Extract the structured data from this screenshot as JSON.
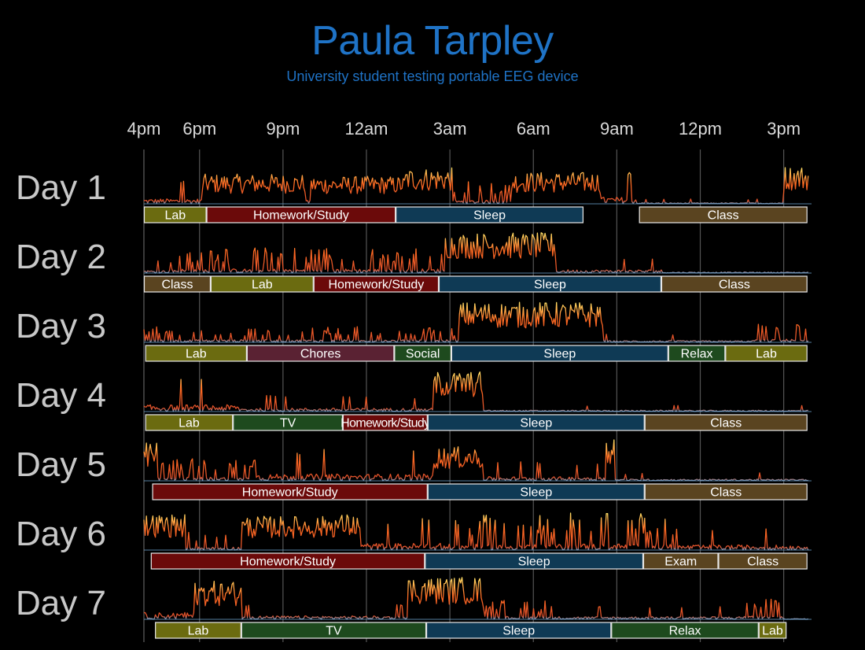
{
  "header": {
    "title": "Paula Tarpley",
    "subtitle": "University student testing portable EEG device"
  },
  "colors": {
    "background": "#000000",
    "title": "#1f73c6",
    "gridline": "#555555",
    "signal_low": "#6a9ec9",
    "signal_mid": "#ff4a1c",
    "signal_high": "#ffe066",
    "activities": {
      "Lab": "#6b6b10",
      "Homework/Study": "#6b0a0a",
      "Sleep": "#0f3a55",
      "Class": "#5a4420",
      "Chores": "#5a2233",
      "Social": "#1e4a1e",
      "Relax": "#1e4a1e",
      "TV": "#1e4a1e",
      "Exam": "#5a4420"
    }
  },
  "chart_data": {
    "type": "timeline",
    "title": "Paula Tarpley",
    "subtitle": "University student testing portable EEG device",
    "x_unit": "hours since 4pm",
    "x_range": [
      0,
      24
    ],
    "x_ticks": [
      {
        "hour": 0,
        "label": "4pm"
      },
      {
        "hour": 2,
        "label": "6pm"
      },
      {
        "hour": 5,
        "label": "9pm"
      },
      {
        "hour": 8,
        "label": "12am"
      },
      {
        "hour": 11,
        "label": "3am"
      },
      {
        "hour": 14,
        "label": "6am"
      },
      {
        "hour": 17,
        "label": "9am"
      },
      {
        "hour": 20,
        "label": "12pm"
      },
      {
        "hour": 23,
        "label": "3pm"
      }
    ],
    "days": [
      {
        "label": "Day 1",
        "activities": [
          {
            "label": "Lab",
            "start": 0.0,
            "end": 2.25
          },
          {
            "label": "Homework/Study",
            "start": 2.25,
            "end": 9.05
          },
          {
            "label": "Sleep",
            "start": 9.05,
            "end": 15.8
          },
          {
            "label": "Class",
            "start": 17.8,
            "end": 23.85
          }
        ],
        "signal": [
          {
            "start": 0.0,
            "end": 2.1,
            "level": 0.15
          },
          {
            "start": 2.1,
            "end": 5.8,
            "level": 0.7
          },
          {
            "start": 5.8,
            "end": 6.0,
            "level": 0.1
          },
          {
            "start": 6.0,
            "end": 9.4,
            "level": 0.65
          },
          {
            "start": 9.4,
            "end": 11.1,
            "level": 0.85
          },
          {
            "start": 11.1,
            "end": 13.2,
            "level": 0.35
          },
          {
            "start": 13.2,
            "end": 16.4,
            "level": 0.75
          },
          {
            "start": 16.4,
            "end": 17.7,
            "level": 0.2
          },
          {
            "start": 17.7,
            "end": 23.0,
            "level": 0.03
          },
          {
            "start": 23.0,
            "end": 23.9,
            "level": 0.9
          }
        ]
      },
      {
        "label": "Day 2",
        "activities": [
          {
            "label": "Class",
            "start": 0.0,
            "end": 2.4
          },
          {
            "label": "Lab",
            "start": 2.4,
            "end": 6.1
          },
          {
            "label": "Homework/Study",
            "start": 6.1,
            "end": 10.6
          },
          {
            "label": "Sleep",
            "start": 10.6,
            "end": 18.6
          },
          {
            "label": "Class",
            "start": 18.6,
            "end": 23.85
          }
        ],
        "signal": [
          {
            "start": 0.0,
            "end": 1.0,
            "level": 0.08
          },
          {
            "start": 1.0,
            "end": 10.8,
            "level": 0.4
          },
          {
            "start": 10.8,
            "end": 14.8,
            "level": 0.95
          },
          {
            "start": 14.8,
            "end": 18.6,
            "level": 0.1
          },
          {
            "start": 18.6,
            "end": 23.9,
            "level": 0.03
          }
        ]
      },
      {
        "label": "Day 3",
        "activities": [
          {
            "label": "Lab",
            "start": 0.05,
            "end": 3.7
          },
          {
            "label": "Chores",
            "start": 3.7,
            "end": 9.0
          },
          {
            "label": "Social",
            "start": 9.0,
            "end": 11.05
          },
          {
            "label": "Sleep",
            "start": 11.05,
            "end": 18.85
          },
          {
            "label": "Relax",
            "start": 18.85,
            "end": 20.9
          },
          {
            "label": "Lab",
            "start": 20.9,
            "end": 23.85
          }
        ],
        "signal": [
          {
            "start": 0.0,
            "end": 11.3,
            "level": 0.25
          },
          {
            "start": 11.3,
            "end": 16.5,
            "level": 0.95
          },
          {
            "start": 16.5,
            "end": 21.8,
            "level": 0.05
          },
          {
            "start": 21.8,
            "end": 23.9,
            "level": 0.3
          }
        ]
      },
      {
        "label": "Day 4",
        "activities": [
          {
            "label": "Lab",
            "start": 0.05,
            "end": 3.2
          },
          {
            "label": "TV",
            "start": 3.2,
            "end": 7.15
          },
          {
            "label": "Homework/Study",
            "start": 7.15,
            "end": 10.2
          },
          {
            "label": "Sleep",
            "start": 10.2,
            "end": 18.0
          },
          {
            "label": "Class",
            "start": 18.0,
            "end": 23.85
          }
        ],
        "signal": [
          {
            "start": 0.0,
            "end": 3.4,
            "level": 0.2
          },
          {
            "start": 3.4,
            "end": 10.4,
            "level": 0.1
          },
          {
            "start": 10.4,
            "end": 12.2,
            "level": 0.95
          },
          {
            "start": 12.2,
            "end": 23.9,
            "level": 0.04
          }
        ]
      },
      {
        "label": "Day 5",
        "activities": [
          {
            "label": "Homework/Study",
            "start": 0.3,
            "end": 10.2
          },
          {
            "label": "Sleep",
            "start": 10.2,
            "end": 18.0
          },
          {
            "label": "Class",
            "start": 18.0,
            "end": 23.85
          }
        ],
        "signal": [
          {
            "start": 0.0,
            "end": 0.5,
            "level": 0.9
          },
          {
            "start": 0.5,
            "end": 4.0,
            "level": 0.35
          },
          {
            "start": 4.0,
            "end": 10.4,
            "level": 0.2
          },
          {
            "start": 10.4,
            "end": 12.2,
            "level": 0.8
          },
          {
            "start": 12.2,
            "end": 16.6,
            "level": 0.12
          },
          {
            "start": 16.6,
            "end": 16.9,
            "level": 1.0
          },
          {
            "start": 16.9,
            "end": 23.9,
            "level": 0.05
          }
        ]
      },
      {
        "label": "Day 6",
        "activities": [
          {
            "label": "Homework/Study",
            "start": 0.25,
            "end": 10.1
          },
          {
            "label": "Sleep",
            "start": 10.1,
            "end": 17.95
          },
          {
            "label": "Exam",
            "start": 17.95,
            "end": 20.65
          },
          {
            "label": "Class",
            "start": 20.65,
            "end": 23.85
          }
        ],
        "signal": [
          {
            "start": 0.0,
            "end": 1.5,
            "level": 0.85
          },
          {
            "start": 1.5,
            "end": 3.5,
            "level": 0.3
          },
          {
            "start": 3.5,
            "end": 6.5,
            "level": 0.8
          },
          {
            "start": 6.5,
            "end": 7.8,
            "level": 0.85
          },
          {
            "start": 7.8,
            "end": 10.8,
            "level": 0.2
          },
          {
            "start": 10.8,
            "end": 15.3,
            "level": 0.55
          },
          {
            "start": 15.3,
            "end": 19.2,
            "level": 0.6
          },
          {
            "start": 19.2,
            "end": 23.9,
            "level": 0.15
          }
        ]
      },
      {
        "label": "Day 7",
        "activities": [
          {
            "label": "Lab",
            "start": 0.4,
            "end": 3.5
          },
          {
            "label": "TV",
            "start": 3.5,
            "end": 10.15
          },
          {
            "label": "Sleep",
            "start": 10.15,
            "end": 16.8
          },
          {
            "label": "Relax",
            "start": 16.8,
            "end": 22.1
          },
          {
            "label": "Lab",
            "start": 22.1,
            "end": 23.1
          }
        ],
        "signal": [
          {
            "start": 0.0,
            "end": 1.8,
            "level": 0.2
          },
          {
            "start": 1.8,
            "end": 3.5,
            "level": 0.9
          },
          {
            "start": 3.5,
            "end": 9.5,
            "level": 0.1
          },
          {
            "start": 9.5,
            "end": 12.2,
            "level": 1.0
          },
          {
            "start": 12.2,
            "end": 14.5,
            "level": 0.3
          },
          {
            "start": 14.5,
            "end": 21.5,
            "level": 0.08
          },
          {
            "start": 21.5,
            "end": 23.0,
            "level": 0.35
          },
          {
            "start": 23.0,
            "end": 23.9,
            "level": 0.02
          }
        ]
      }
    ]
  }
}
